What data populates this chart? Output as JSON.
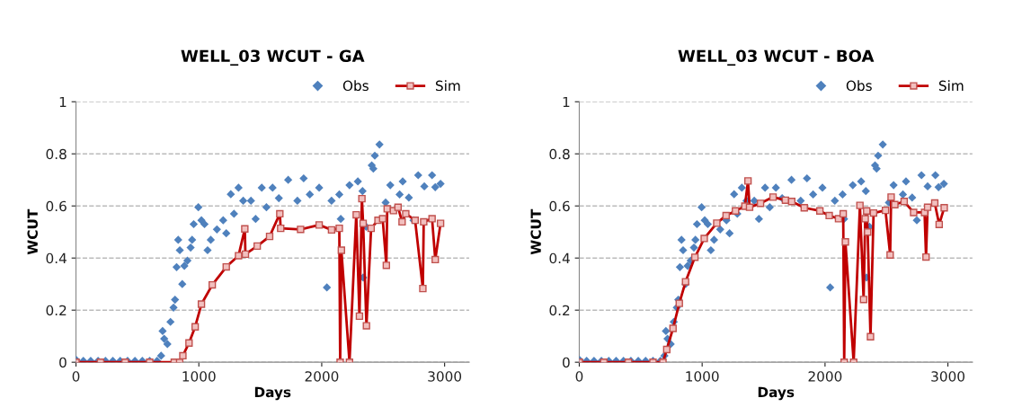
{
  "chart_data": [
    {
      "type": "scatter",
      "title": "WELL_03 WCUT - GA",
      "xlabel": "Days",
      "ylabel": "WCUT",
      "xlim": [
        0,
        3200
      ],
      "xticks": [
        0,
        1000,
        2000,
        3000
      ],
      "ylim": [
        0,
        1
      ],
      "yticks": [
        0,
        0.2,
        0.4,
        0.6,
        0.8,
        1
      ],
      "grid": "y",
      "legend": "top right",
      "series": [
        {
          "name": "Obs",
          "marker": "diamond",
          "color": "#4f81bd",
          "x": [
            0,
            60,
            120,
            180,
            240,
            300,
            360,
            420,
            480,
            540,
            600,
            660,
            693,
            705,
            718,
            744,
            769,
            794,
            806,
            819,
            832,
            845,
            865,
            882,
            907,
            933,
            945,
            958,
            996,
            1021,
            1046,
            1071,
            1097,
            1147,
            1198,
            1223,
            1260,
            1286,
            1323,
            1361,
            1424,
            1462,
            1512,
            1550,
            1600,
            1651,
            1727,
            1802,
            1853,
            1903,
            1979,
            2042,
            2080,
            2143,
            2155,
            2226,
            2294,
            2332,
            2337,
            2362,
            2407,
            2420,
            2432,
            2470,
            2520,
            2558,
            2634,
            2659,
            2709,
            2747,
            2785,
            2835,
            2898,
            2924,
            2967
          ],
          "values": [
            0.01,
            0.005,
            0.005,
            0.005,
            0.005,
            0.005,
            0.005,
            0.005,
            0.005,
            0.005,
            0.005,
            0.005,
            0.025,
            0.12,
            0.09,
            0.07,
            0.155,
            0.21,
            0.24,
            0.365,
            0.47,
            0.43,
            0.3,
            0.37,
            0.39,
            0.44,
            0.47,
            0.53,
            0.595,
            0.545,
            0.53,
            0.43,
            0.47,
            0.51,
            0.545,
            0.495,
            0.645,
            0.57,
            0.67,
            0.62,
            0.62,
            0.55,
            0.67,
            0.595,
            0.67,
            0.63,
            0.7,
            0.62,
            0.706,
            0.644,
            0.67,
            0.287,
            0.62,
            0.644,
            0.55,
            0.68,
            0.694,
            0.657,
            0.325,
            0.52,
            0.756,
            0.743,
            0.793,
            0.836,
            0.613,
            0.68,
            0.644,
            0.694,
            0.632,
            0.545,
            0.718,
            0.675,
            0.718,
            0.672,
            0.685
          ]
        },
        {
          "name": "Sim",
          "type": "line",
          "marker": "square",
          "color": "#c00000",
          "x": [
            0,
            200,
            400,
            600,
            800,
            844,
            870,
            920,
            970,
            1021,
            1109,
            1223,
            1323,
            1374,
            1379,
            1475,
            1576,
            1659,
            1666,
            1828,
            1979,
            2080,
            2143,
            2150,
            2160,
            2226,
            2281,
            2307,
            2327,
            2337,
            2364,
            2402,
            2458,
            2496,
            2526,
            2533,
            2584,
            2621,
            2654,
            2684,
            2760,
            2823,
            2830,
            2898,
            2924,
            2967
          ],
          "values": [
            0,
            0,
            0,
            0,
            0,
            0,
            0.025,
            0.074,
            0.136,
            0.223,
            0.297,
            0.366,
            0.409,
            0.512,
            0.415,
            0.446,
            0.483,
            0.57,
            0.514,
            0.51,
            0.527,
            0.508,
            0.514,
            0,
            0.43,
            0,
            0.566,
            0.177,
            0.628,
            0.533,
            0.14,
            0.514,
            0.545,
            0.551,
            0.372,
            0.589,
            0.582,
            0.595,
            0.539,
            0.57,
            0.545,
            0.283,
            0.539,
            0.551,
            0.394,
            0.533
          ]
        }
      ]
    },
    {
      "type": "scatter",
      "title": "WELL_03 WCUT - BOA",
      "xlabel": "Days",
      "ylabel": "WCUT",
      "xlim": [
        0,
        3200
      ],
      "xticks": [
        0,
        1000,
        2000,
        3000
      ],
      "ylim": [
        0,
        1
      ],
      "yticks": [
        0,
        0.2,
        0.4,
        0.6,
        0.8,
        1
      ],
      "grid": "y",
      "legend": "top right",
      "series": [
        {
          "name": "Obs",
          "marker": "diamond",
          "color": "#4f81bd",
          "x": [
            0,
            60,
            120,
            180,
            240,
            300,
            360,
            420,
            480,
            540,
            600,
            660,
            693,
            705,
            718,
            744,
            769,
            794,
            806,
            819,
            832,
            845,
            865,
            882,
            907,
            933,
            945,
            958,
            996,
            1021,
            1046,
            1071,
            1097,
            1147,
            1198,
            1223,
            1260,
            1286,
            1323,
            1361,
            1424,
            1462,
            1512,
            1550,
            1600,
            1651,
            1727,
            1802,
            1853,
            1903,
            1979,
            2042,
            2080,
            2143,
            2155,
            2226,
            2294,
            2332,
            2337,
            2362,
            2407,
            2420,
            2432,
            2470,
            2520,
            2558,
            2634,
            2659,
            2709,
            2747,
            2785,
            2835,
            2898,
            2924,
            2967
          ],
          "values": [
            0.01,
            0.005,
            0.005,
            0.005,
            0.005,
            0.005,
            0.005,
            0.005,
            0.005,
            0.005,
            0.005,
            0.005,
            0.025,
            0.12,
            0.09,
            0.07,
            0.155,
            0.21,
            0.24,
            0.365,
            0.47,
            0.43,
            0.3,
            0.37,
            0.39,
            0.44,
            0.47,
            0.53,
            0.595,
            0.545,
            0.53,
            0.43,
            0.47,
            0.51,
            0.545,
            0.495,
            0.645,
            0.57,
            0.67,
            0.62,
            0.62,
            0.55,
            0.67,
            0.595,
            0.67,
            0.63,
            0.7,
            0.62,
            0.706,
            0.644,
            0.67,
            0.287,
            0.62,
            0.644,
            0.55,
            0.68,
            0.694,
            0.657,
            0.325,
            0.52,
            0.756,
            0.743,
            0.793,
            0.836,
            0.613,
            0.68,
            0.644,
            0.694,
            0.632,
            0.545,
            0.718,
            0.675,
            0.718,
            0.672,
            0.685
          ]
        },
        {
          "name": "Sim",
          "type": "line",
          "marker": "square",
          "color": "#c00000",
          "x": [
            0,
            200,
            400,
            600,
            681,
            712,
            763,
            814,
            865,
            941,
            1017,
            1119,
            1195,
            1271,
            1348,
            1373,
            1386,
            1475,
            1577,
            1678,
            1729,
            1831,
            1958,
            2034,
            2110,
            2148,
            2156,
            2166,
            2233,
            2284,
            2314,
            2327,
            2339,
            2347,
            2370,
            2395,
            2492,
            2530,
            2538,
            2568,
            2644,
            2721,
            2810,
            2822,
            2835,
            2893,
            2929,
            2970
          ],
          "values": [
            0,
            0,
            0,
            0,
            0,
            0.049,
            0.13,
            0.226,
            0.309,
            0.403,
            0.475,
            0.534,
            0.563,
            0.581,
            0.599,
            0.696,
            0.595,
            0.61,
            0.634,
            0.622,
            0.617,
            0.593,
            0.581,
            0.563,
            0.551,
            0.57,
            0,
            0.462,
            0,
            0.602,
            0.241,
            0.551,
            0.581,
            0.5,
            0.098,
            0.573,
            0.583,
            0.412,
            0.634,
            0.605,
            0.617,
            0.575,
            0.575,
            0.404,
            0.595,
            0.611,
            0.529,
            0.593
          ]
        }
      ]
    }
  ]
}
